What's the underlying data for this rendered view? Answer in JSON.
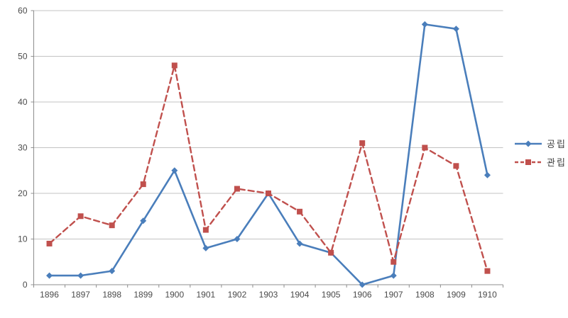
{
  "chart_data": {
    "type": "line",
    "title": "",
    "xlabel": "",
    "ylabel": "",
    "categories": [
      "1896",
      "1897",
      "1898",
      "1899",
      "1900",
      "1901",
      "1902",
      "1903",
      "1904",
      "1905",
      "1906",
      "1907",
      "1908",
      "1909",
      "1910"
    ],
    "series": [
      {
        "name": "공립",
        "color": "#4A7EBB",
        "line_style": "solid",
        "marker": "diamond",
        "values": [
          2,
          2,
          3,
          14,
          25,
          8,
          10,
          20,
          9,
          7,
          0,
          2,
          57,
          56,
          24
        ]
      },
      {
        "name": "관립",
        "color": "#C0504D",
        "line_style": "dashed",
        "marker": "square",
        "values": [
          9,
          15,
          13,
          22,
          48,
          12,
          21,
          20,
          16,
          7,
          31,
          5,
          30,
          26,
          3
        ]
      }
    ],
    "ylim": [
      0,
      60
    ],
    "yticks": [
      0,
      10,
      20,
      30,
      40,
      50,
      60
    ],
    "grid": "horizontal",
    "legend_position": "right"
  },
  "colors": {
    "background": "#ffffff",
    "gridline": "#c3c3c3",
    "axis": "#8e8e8e",
    "tick_label": "#4a4a4a"
  }
}
